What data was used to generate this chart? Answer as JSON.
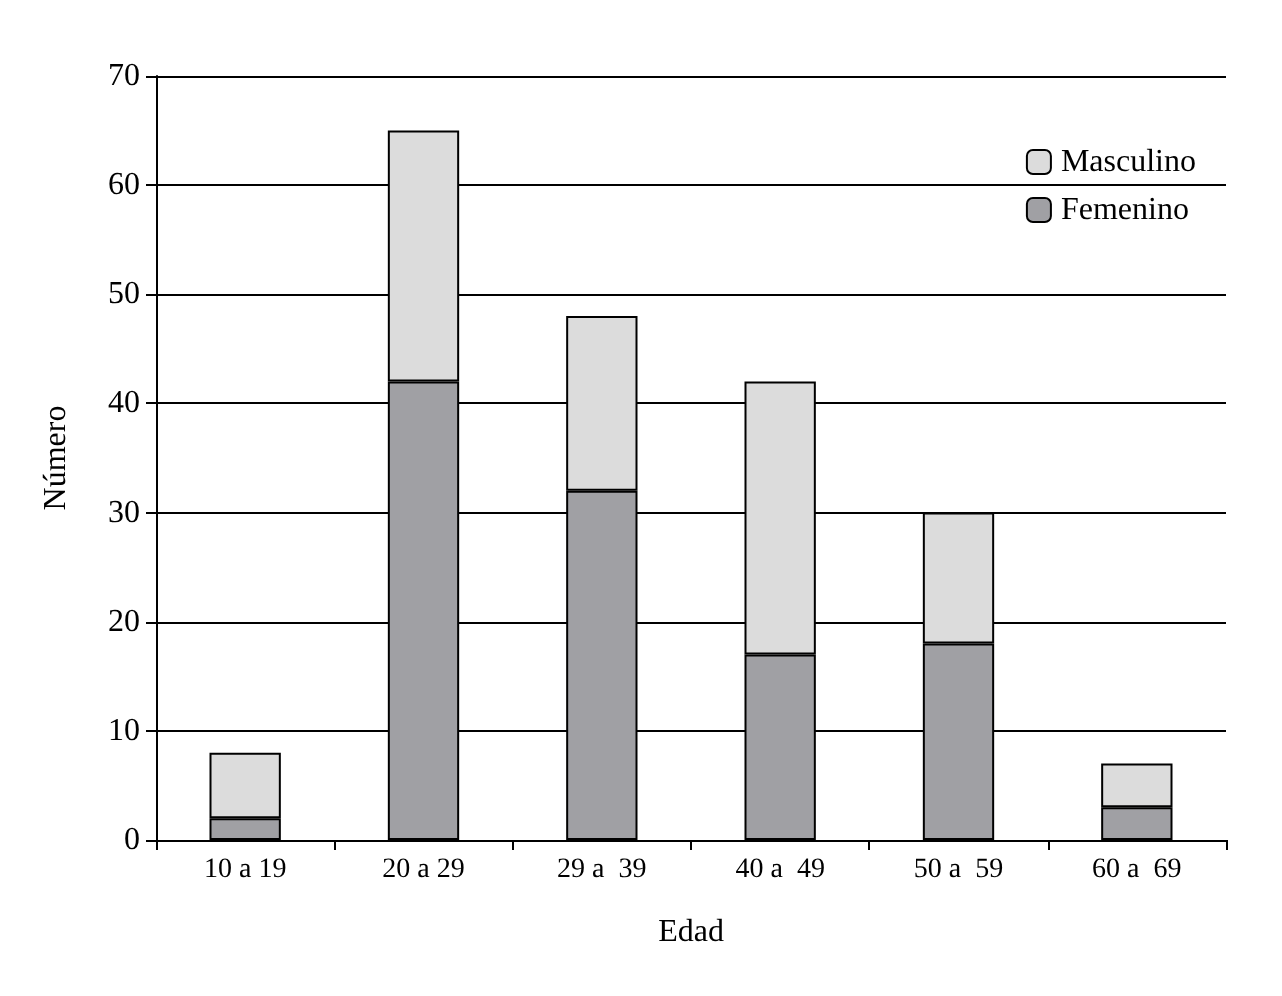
{
  "chart_data": {
    "type": "bar",
    "stacked": true,
    "xlabel": "Edad",
    "ylabel": "Número",
    "categories": [
      "10 a 19",
      "20 a 29",
      "29 a  39",
      "40 a  49",
      "50 a  59",
      "60 a  69"
    ],
    "series": [
      {
        "name": "Femenino",
        "color": "#a0a0a4",
        "values": [
          2,
          42,
          32,
          17,
          18,
          3
        ]
      },
      {
        "name": "Masculino",
        "color": "#dcdcdc",
        "values": [
          6,
          23,
          16,
          25,
          12,
          4
        ]
      }
    ],
    "ylim": [
      0,
      70
    ],
    "yticks": [
      0,
      10,
      20,
      30,
      40,
      50,
      60,
      70
    ],
    "grid": "y",
    "legend": "top right"
  }
}
